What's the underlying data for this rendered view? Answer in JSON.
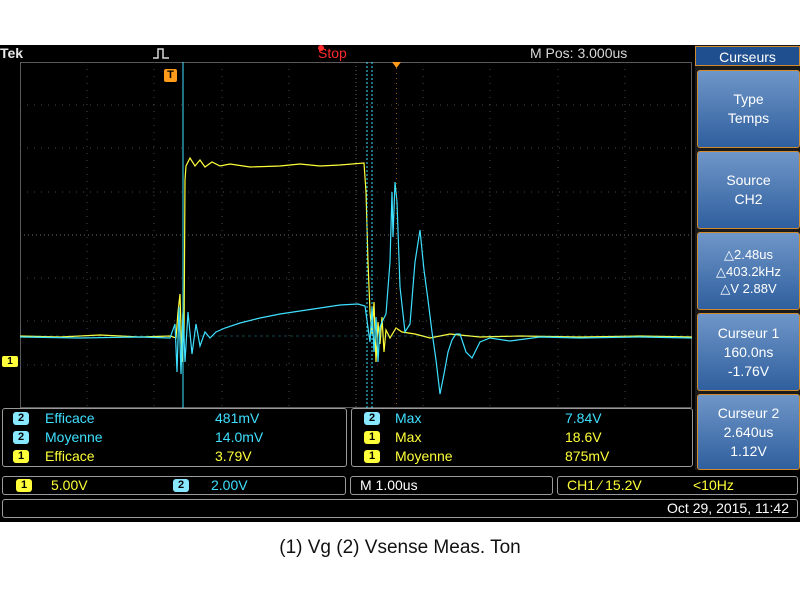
{
  "topbar": {
    "brand": "Tek",
    "run_state": "Stop",
    "m_pos": "M Pos: 3.000us"
  },
  "markers": {
    "trigger_label": "T",
    "ch1_ground": "1"
  },
  "sidebar": {
    "title": "Curseurs",
    "type": [
      "Type",
      "Temps"
    ],
    "source": [
      "Source",
      "CH2"
    ],
    "delta": [
      "△2.48us",
      "△403.2kHz",
      "△V 2.88V"
    ],
    "cursor1": [
      "Curseur 1",
      "160.0ns",
      "-1.76V"
    ],
    "cursor2": [
      "Curseur 2",
      "2.640us",
      "1.12V"
    ]
  },
  "measurements_left": [
    {
      "ch": "2",
      "name": "Efficace",
      "value": "481mV"
    },
    {
      "ch": "2",
      "name": "Moyenne",
      "value": "14.0mV"
    },
    {
      "ch": "1",
      "name": "Efficace",
      "value": "3.79V"
    }
  ],
  "measurements_right": [
    {
      "ch": "2",
      "name": "Max",
      "value": "7.84V"
    },
    {
      "ch": "1",
      "name": "Max",
      "value": "18.6V"
    },
    {
      "ch": "1",
      "name": "Moyenne",
      "value": "875mV"
    }
  ],
  "settings": {
    "ch1_num": "1",
    "ch1_scale": "5.00V",
    "ch2_num": "2",
    "ch2_scale": "2.00V",
    "timebase": "M 1.00us",
    "trigger": "CH1 ∕ 15.2V",
    "bandwidth": "<10Hz"
  },
  "datetime": "Oct 29, 2015, 11:42",
  "caption": "(1) Vg (2) Vsense Meas. Ton",
  "colors": {
    "ch1": "#ffff3a",
    "ch2": "#3ee0ff",
    "cursor_frame": "#d08a30",
    "menu_blue": "#2f5f9e",
    "stop": "#ff2a2a"
  }
}
